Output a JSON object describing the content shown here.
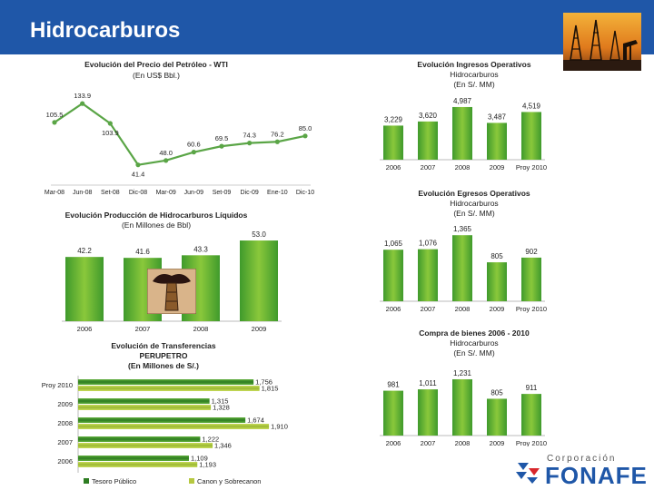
{
  "header": {
    "title": "Hidrocarburos"
  },
  "logo": {
    "top": "Corporación",
    "main": "FONAFE"
  },
  "colors": {
    "header": "#1f57a8",
    "green": "#3f9a2c",
    "greenLight": "#8ac83b",
    "line": "#5aa546",
    "yellowGreen": "#b6c840"
  },
  "chart_data": [
    {
      "type": "line",
      "title": "Evolución del Precio del Petróleo - WTI",
      "subtitle": "(En US$ Bbl.)",
      "categories": [
        "Mar-08",
        "Jun-08",
        "Set-08",
        "Dic-08",
        "Mar-09",
        "Jun-09",
        "Set-09",
        "Dic-09",
        "Ene-10",
        "Dic-10"
      ],
      "values": [
        105.5,
        133.9,
        103.9,
        41.4,
        48.0,
        60.6,
        69.5,
        74.3,
        76.2,
        85.0
      ],
      "labels": [
        "105.5",
        "133.9",
        "103.9",
        "41.4",
        "48.0",
        "60.6",
        "69.5",
        "74.3",
        "76.2",
        "85.0"
      ],
      "ylim": [
        30,
        145
      ]
    },
    {
      "type": "bar",
      "title": "Evolución Ingresos Operativos",
      "subtitle": "Hidrocarburos",
      "unit": "(En S/. MM)",
      "categories": [
        "2006",
        "2007",
        "2008",
        "2009",
        "Proy 2010"
      ],
      "values": [
        3229,
        3620,
        4987,
        3487,
        4519
      ],
      "labels": [
        "3,229",
        "3,620",
        "4,987",
        "3,487",
        "4,519"
      ],
      "ylim": [
        0,
        5500
      ]
    },
    {
      "type": "bar",
      "title": "Evolución Egresos Operativos",
      "subtitle": "Hidrocarburos",
      "unit": "(En S/. MM)",
      "categories": [
        "2006",
        "2007",
        "2008",
        "2009",
        "Proy 2010"
      ],
      "values": [
        1065,
        1076,
        1365,
        805,
        902
      ],
      "labels": [
        "1,065",
        "1,076",
        "1,365",
        "805",
        "902"
      ],
      "ylim": [
        0,
        1500
      ]
    },
    {
      "type": "bar",
      "title": "Evolución Producción de Hidrocarburos Líquidos",
      "subtitle": "(En Millones de Bbl)",
      "categories": [
        "2006",
        "2007",
        "2008",
        "2009"
      ],
      "values": [
        42.2,
        41.6,
        43.3,
        53.0
      ],
      "labels": [
        "42.2",
        "41.6",
        "43.3",
        "53.0"
      ],
      "ylim": [
        0,
        56
      ]
    },
    {
      "type": "bar",
      "title": "Compra de bienes 2006 - 2010",
      "subtitle": "Hidrocarburos",
      "unit": "(En S/. MM)",
      "categories": [
        "2006",
        "2007",
        "2008",
        "2009",
        "Proy 2010"
      ],
      "values": [
        981,
        1011,
        1231,
        805,
        911
      ],
      "labels": [
        "981",
        "1,011",
        "1,231",
        "805",
        "911"
      ],
      "ylim": [
        0,
        1350
      ]
    },
    {
      "type": "bar",
      "orientation": "horizontal",
      "title": "Evolución de Transferencias",
      "subtitle": "PERUPETRO",
      "unit": "(En Millones de S/.)",
      "categories": [
        "Proy 2010",
        "2009",
        "2008",
        "2007",
        "2006"
      ],
      "series": [
        {
          "name": "Tesoro Público",
          "values": [
            1756,
            1315,
            1674,
            1222,
            1109
          ],
          "labels": [
            "1,756",
            "1,315",
            "1,674",
            "1,222",
            "1,109"
          ]
        },
        {
          "name": "Canon y Sobrecanon",
          "values": [
            1815,
            1328,
            1910,
            1346,
            1193
          ],
          "labels": [
            "1,815",
            "1,328",
            "1,910",
            "1,346",
            "1,193"
          ]
        }
      ],
      "xlim": [
        0,
        2000
      ]
    }
  ]
}
